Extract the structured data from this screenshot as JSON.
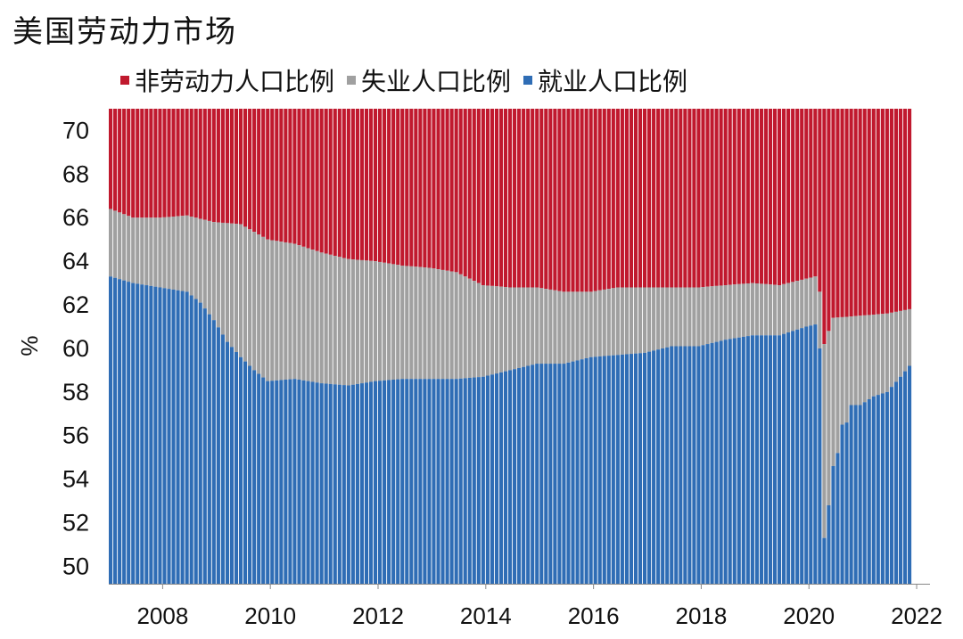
{
  "title": "美国劳动力市场",
  "chart_data": {
    "type": "bar",
    "stacked": true,
    "ylabel": "%",
    "xlabel": "",
    "ylim": [
      49.2,
      71
    ],
    "yticks": [
      50,
      52,
      54,
      56,
      58,
      60,
      62,
      64,
      66,
      68,
      70
    ],
    "xticks": [
      2008,
      2010,
      2012,
      2014,
      2016,
      2018,
      2020,
      2022
    ],
    "xrange_months": [
      "2007-01",
      "2021-11"
    ],
    "legend_position": "top",
    "colors": {
      "non_labor": "#C0192E",
      "unemployed": "#A0A0A0",
      "employed": "#2F6DB5"
    },
    "series": [
      {
        "name": "非劳动力人口比例",
        "key": "non_labor",
        "note_values": "remainder to 100%"
      },
      {
        "name": "失业人口比例",
        "key": "unemployed"
      },
      {
        "name": "就业人口比例",
        "key": "employed"
      }
    ],
    "employed_anchors": [
      [
        "2007-01",
        63.3
      ],
      [
        "2007-06",
        63.0
      ],
      [
        "2007-12",
        62.8
      ],
      [
        "2008-06",
        62.6
      ],
      [
        "2008-09",
        62.1
      ],
      [
        "2008-12",
        61.3
      ],
      [
        "2009-03",
        60.3
      ],
      [
        "2009-06",
        59.6
      ],
      [
        "2009-09",
        59.0
      ],
      [
        "2009-12",
        58.5
      ],
      [
        "2010-06",
        58.6
      ],
      [
        "2010-12",
        58.4
      ],
      [
        "2011-06",
        58.3
      ],
      [
        "2011-12",
        58.5
      ],
      [
        "2012-06",
        58.6
      ],
      [
        "2012-12",
        58.6
      ],
      [
        "2013-06",
        58.6
      ],
      [
        "2013-12",
        58.7
      ],
      [
        "2014-06",
        59.0
      ],
      [
        "2014-12",
        59.3
      ],
      [
        "2015-06",
        59.3
      ],
      [
        "2015-12",
        59.6
      ],
      [
        "2016-06",
        59.7
      ],
      [
        "2016-12",
        59.8
      ],
      [
        "2017-06",
        60.1
      ],
      [
        "2017-12",
        60.1
      ],
      [
        "2018-06",
        60.4
      ],
      [
        "2018-12",
        60.6
      ],
      [
        "2019-06",
        60.6
      ],
      [
        "2019-12",
        61.0
      ],
      [
        "2020-02",
        61.1
      ],
      [
        "2020-03",
        60.0
      ],
      [
        "2020-04",
        51.3
      ],
      [
        "2020-05",
        52.8
      ],
      [
        "2020-06",
        54.6
      ],
      [
        "2020-07",
        55.2
      ],
      [
        "2020-08",
        56.5
      ],
      [
        "2020-09",
        56.6
      ],
      [
        "2020-10",
        57.4
      ],
      [
        "2020-12",
        57.4
      ],
      [
        "2021-03",
        57.8
      ],
      [
        "2021-06",
        58.0
      ],
      [
        "2021-09",
        58.7
      ],
      [
        "2021-11",
        59.2
      ]
    ],
    "labor_participation_anchors": [
      [
        "2007-01",
        66.4
      ],
      [
        "2007-06",
        66.0
      ],
      [
        "2007-12",
        66.0
      ],
      [
        "2008-06",
        66.1
      ],
      [
        "2008-12",
        65.8
      ],
      [
        "2009-06",
        65.7
      ],
      [
        "2009-12",
        65.0
      ],
      [
        "2010-06",
        64.8
      ],
      [
        "2010-12",
        64.4
      ],
      [
        "2011-06",
        64.1
      ],
      [
        "2011-12",
        64.0
      ],
      [
        "2012-06",
        63.8
      ],
      [
        "2012-12",
        63.7
      ],
      [
        "2013-06",
        63.5
      ],
      [
        "2013-12",
        62.9
      ],
      [
        "2014-06",
        62.8
      ],
      [
        "2014-12",
        62.8
      ],
      [
        "2015-06",
        62.6
      ],
      [
        "2015-12",
        62.6
      ],
      [
        "2016-06",
        62.8
      ],
      [
        "2016-12",
        62.8
      ],
      [
        "2017-06",
        62.8
      ],
      [
        "2017-12",
        62.8
      ],
      [
        "2018-06",
        62.9
      ],
      [
        "2018-12",
        63.0
      ],
      [
        "2019-06",
        62.9
      ],
      [
        "2019-12",
        63.2
      ],
      [
        "2020-02",
        63.3
      ],
      [
        "2020-03",
        62.6
      ],
      [
        "2020-04",
        60.2
      ],
      [
        "2020-05",
        60.8
      ],
      [
        "2020-06",
        61.4
      ],
      [
        "2020-12",
        61.5
      ],
      [
        "2021-06",
        61.6
      ],
      [
        "2021-11",
        61.8
      ]
    ]
  }
}
